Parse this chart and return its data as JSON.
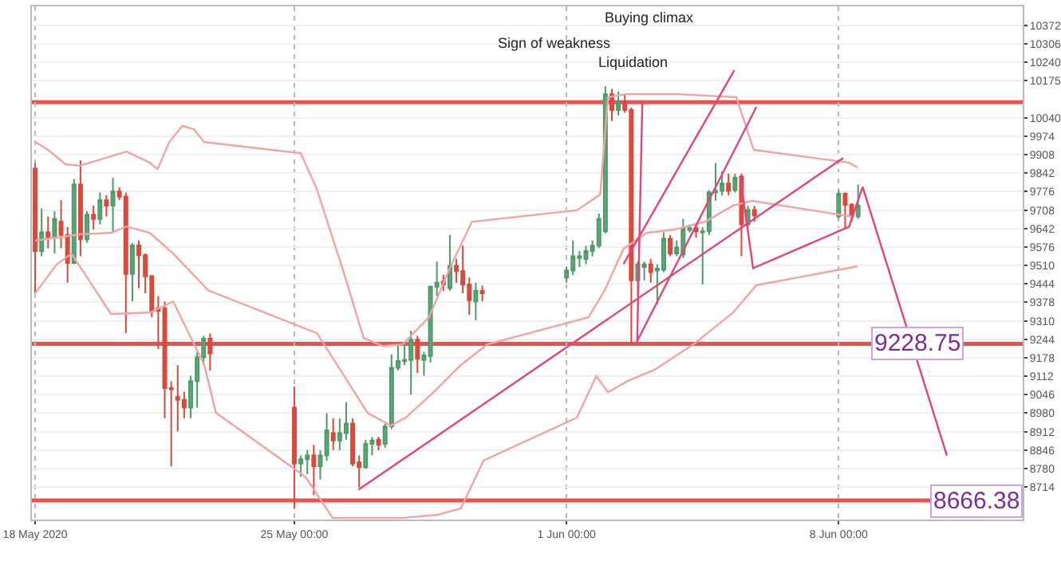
{
  "chart_data": {
    "type": "candlestick",
    "xlim": [
      "2020-05-18T06:00",
      "2020-06-12T17:36"
    ],
    "ylim": [
      8598,
      10440
    ],
    "xticks": [
      {
        "value": "2020-05-18T08:00",
        "label": "18 May 2020"
      },
      {
        "value": "2020-05-25T00:00",
        "label": "25 May 00:00"
      },
      {
        "value": "2020-06-01T00:00",
        "label": "1 Jun 00:00"
      },
      {
        "value": "2020-06-08T00:00",
        "label": "8 Jun 00:00"
      }
    ],
    "yticks": [
      10372,
      10306,
      10240,
      10175,
      10040,
      9974,
      9908,
      9842,
      9776,
      9708,
      9642,
      9576,
      9510,
      9444,
      9378,
      9310,
      9244,
      9178,
      9112,
      9046,
      8980,
      8912,
      8846,
      8780,
      8714
    ],
    "grid": true,
    "x": [
      "2020-05-18T08:00",
      "2020-05-18T12:00",
      "2020-05-18T16:00",
      "2020-05-18T20:00",
      "2020-05-19T00:00",
      "2020-05-19T04:00",
      "2020-05-19T08:00",
      "2020-05-19T12:00",
      "2020-05-19T16:00",
      "2020-05-19T20:00",
      "2020-05-20T00:00",
      "2020-05-20T04:00",
      "2020-05-20T08:00",
      "2020-05-20T12:00",
      "2020-05-20T16:00",
      "2020-05-20T20:00",
      "2020-05-21T00:00",
      "2020-05-21T04:00",
      "2020-05-21T08:00",
      "2020-05-21T12:00",
      "2020-05-21T16:00",
      "2020-05-21T20:00",
      "2020-05-22T00:00",
      "2020-05-22T04:00",
      "2020-05-22T08:00",
      "2020-05-22T12:00",
      "2020-05-22T16:00",
      "2020-05-22T20:00",
      "2020-05-25T00:00",
      "2020-05-25T04:00",
      "2020-05-25T08:00",
      "2020-05-25T12:00",
      "2020-05-25T16:00",
      "2020-05-25T20:00",
      "2020-05-26T00:00",
      "2020-05-26T04:00",
      "2020-05-26T08:00",
      "2020-05-26T12:00",
      "2020-05-26T16:00",
      "2020-05-26T20:00",
      "2020-05-27T00:00",
      "2020-05-27T04:00",
      "2020-05-27T08:00",
      "2020-05-27T12:00",
      "2020-05-27T16:00",
      "2020-05-27T20:00",
      "2020-05-28T00:00",
      "2020-05-28T04:00",
      "2020-05-28T08:00",
      "2020-05-28T12:00",
      "2020-05-28T16:00",
      "2020-05-28T20:00",
      "2020-05-29T00:00",
      "2020-05-29T04:00",
      "2020-05-29T08:00",
      "2020-05-29T12:00",
      "2020-05-29T16:00",
      "2020-05-29T20:00",
      "2020-06-01T00:00",
      "2020-06-01T04:00",
      "2020-06-01T08:00",
      "2020-06-01T12:00",
      "2020-06-01T16:00",
      "2020-06-01T20:00",
      "2020-06-02T00:00",
      "2020-06-02T04:00",
      "2020-06-02T08:00",
      "2020-06-02T12:00",
      "2020-06-02T16:00",
      "2020-06-02T20:00",
      "2020-06-03T00:00",
      "2020-06-03T04:00",
      "2020-06-03T08:00",
      "2020-06-03T12:00",
      "2020-06-03T16:00",
      "2020-06-03T20:00",
      "2020-06-04T00:00",
      "2020-06-04T04:00",
      "2020-06-04T08:00",
      "2020-06-04T12:00",
      "2020-06-04T16:00",
      "2020-06-04T20:00",
      "2020-06-05T00:00",
      "2020-06-05T04:00",
      "2020-06-05T08:00",
      "2020-06-05T12:00",
      "2020-06-05T16:00",
      "2020-06-05T20:00",
      "2020-06-08T00:00",
      "2020-06-08T04:00",
      "2020-06-08T08:00",
      "2020-06-08T12:00"
    ],
    "ohlc": [
      [
        9858,
        9877,
        9410,
        9562
      ],
      [
        9562,
        9715,
        9543,
        9629
      ],
      [
        9629,
        9686,
        9572,
        9610
      ],
      [
        9610,
        9705,
        9553,
        9677
      ],
      [
        9667,
        9744,
        9572,
        9620
      ],
      [
        9620,
        9648,
        9448,
        9519
      ],
      [
        9519,
        9820,
        9515,
        9801
      ],
      [
        9801,
        9887,
        9543,
        9604
      ],
      [
        9604,
        9705,
        9591,
        9692
      ],
      [
        9692,
        9725,
        9639,
        9677
      ],
      [
        9677,
        9772,
        9658,
        9744
      ],
      [
        9744,
        9763,
        9686,
        9725
      ],
      [
        9725,
        9824,
        9629,
        9776
      ],
      [
        9776,
        9791,
        9744,
        9757
      ],
      [
        9757,
        9772,
        9267,
        9480
      ],
      [
        9480,
        9591,
        9381,
        9582
      ],
      [
        9582,
        9600,
        9429,
        9547
      ],
      [
        9547,
        9553,
        9410,
        9471
      ],
      [
        9471,
        9477,
        9324,
        9347
      ],
      [
        9356,
        9400,
        9210,
        9347
      ],
      [
        9356,
        9381,
        8962,
        9070
      ],
      [
        9070,
        9095,
        8790,
        9066
      ],
      [
        9038,
        9152,
        8914,
        9028
      ],
      [
        9028,
        9057,
        8962,
        9000
      ],
      [
        9000,
        9114,
        8962,
        9095
      ],
      [
        9095,
        9200,
        9000,
        9181
      ],
      [
        9181,
        9257,
        9152,
        9247
      ],
      [
        9247,
        9266,
        9133,
        9194
      ],
      [
        9000,
        9076,
        8637,
        8799
      ],
      [
        8799,
        8828,
        8752,
        8815
      ],
      [
        8815,
        8847,
        8761,
        8828
      ],
      [
        8828,
        8866,
        8685,
        8790
      ],
      [
        8790,
        8847,
        8742,
        8828
      ],
      [
        8828,
        8980,
        8809,
        8918
      ],
      [
        8908,
        8961,
        8847,
        8882
      ],
      [
        8882,
        8961,
        8847,
        8908
      ],
      [
        8908,
        9019,
        8885,
        8943
      ],
      [
        8943,
        8961,
        8790,
        8799
      ],
      [
        8803,
        8828,
        8714,
        8786
      ],
      [
        8786,
        8885,
        8780,
        8870
      ],
      [
        8870,
        8895,
        8828,
        8882
      ],
      [
        8885,
        8895,
        8847,
        8866
      ],
      [
        8870,
        8943,
        8856,
        8933
      ],
      [
        8933,
        9190,
        8923,
        9143
      ],
      [
        9143,
        9228,
        9133,
        9167
      ],
      [
        9167,
        9228,
        9152,
        9171
      ],
      [
        9171,
        9276,
        9047,
        9244
      ],
      [
        9244,
        9257,
        9124,
        9175
      ],
      [
        9171,
        9200,
        9114,
        9187
      ],
      [
        9185,
        9438,
        9162,
        9434
      ],
      [
        9434,
        9524,
        9400,
        9448
      ],
      [
        9452,
        9476,
        9419,
        9442
      ],
      [
        9429,
        9620,
        9419,
        9509
      ],
      [
        9509,
        9534,
        9448,
        9490
      ],
      [
        9490,
        9581,
        9410,
        9442
      ],
      [
        9442,
        9467,
        9333,
        9385
      ],
      [
        9381,
        9448,
        9314,
        9419
      ],
      [
        9419,
        9438,
        9381,
        9410
      ],
      [
        9467,
        9505,
        9448,
        9492
      ],
      [
        9492,
        9600,
        9476,
        9543
      ],
      [
        9537,
        9562,
        9505,
        9543
      ],
      [
        9533,
        9581,
        9514,
        9562
      ],
      [
        9562,
        9600,
        9543,
        9581
      ],
      [
        9581,
        9696,
        9572,
        9677
      ],
      [
        9633,
        10153,
        9625,
        10125
      ],
      [
        10125,
        10144,
        10029,
        10068
      ],
      [
        10068,
        10134,
        10049,
        10096
      ],
      [
        10096,
        10125,
        10058,
        10068
      ],
      [
        10068,
        10077,
        9229,
        9457
      ],
      [
        9457,
        9524,
        9400,
        9514
      ],
      [
        9505,
        9524,
        9457,
        9514
      ],
      [
        9514,
        9534,
        9448,
        9486
      ],
      [
        9492,
        9514,
        9371,
        9499
      ],
      [
        9495,
        9629,
        9486,
        9606
      ],
      [
        9606,
        9619,
        9543,
        9553
      ],
      [
        9553,
        9600,
        9543,
        9575
      ],
      [
        9549,
        9677,
        9537,
        9642
      ],
      [
        9638,
        9657,
        9629,
        9644
      ],
      [
        9644,
        9657,
        9610,
        9633
      ],
      [
        9629,
        9648,
        9442,
        9633
      ],
      [
        9633,
        9781,
        9619,
        9772
      ],
      [
        9772,
        9877,
        9743,
        9778
      ],
      [
        9778,
        9848,
        9762,
        9804
      ],
      [
        9804,
        9839,
        9762,
        9778
      ],
      [
        9781,
        9839,
        9772,
        9825
      ],
      [
        9829,
        9839,
        9543,
        9658
      ],
      [
        9658,
        9724,
        9648,
        9709
      ],
      [
        9709,
        9724,
        9667,
        9690
      ],
      [
        9686,
        9781,
        9677,
        9768
      ],
      [
        9768,
        9772,
        9639,
        9728
      ],
      [
        9728,
        9734,
        9667,
        9686
      ],
      [
        9686,
        9801,
        9677,
        9725
      ]
    ],
    "series": [
      {
        "type": "line",
        "color": "#f4a3a3",
        "x": [
          "2020-05-18T08:00",
          "2020-05-18T16:00",
          "2020-05-19T02:48",
          "2020-05-19T11:36",
          "2020-05-20T16:24",
          "2020-05-21T06:48",
          "2020-05-21T11:36",
          "2020-05-21T18:48",
          "2020-05-22T02:48",
          "2020-05-22T10:00",
          "2020-05-22T16:24",
          "2020-05-25T04:00",
          "2020-05-25T14:00",
          "2020-05-26T06:48",
          "2020-05-26T18:48",
          "2020-05-27T06:24",
          "2020-05-27T18:48",
          "2020-05-28T11:12",
          "2020-05-28T23:36",
          "2020-05-29T13:36",
          "2020-06-01T06:24",
          "2020-06-01T20:48",
          "2020-06-02T01:36",
          "2020-06-02T12:24",
          "2020-06-03T20:48",
          "2020-06-05T08:48",
          "2020-06-05T19:36",
          "2020-06-08T06:24",
          "2020-06-08T11:36"
        ],
        "values": [
          9953,
          9925,
          9873,
          9868,
          9919,
          9879,
          9856,
          9953,
          10011,
          9999,
          9953,
          9913,
          9782,
          9479,
          9250,
          9221,
          9227,
          9324,
          9496,
          9667,
          9708,
          9765,
          10114,
          10125,
          10125,
          10114,
          9925,
          9879,
          9862
        ]
      },
      {
        "type": "line",
        "color": "#f4a3a3",
        "x": [
          "2020-05-18T08:00",
          "2020-05-19T11:36",
          "2020-05-20T06:48",
          "2020-05-20T16:24",
          "2020-05-21T06:48",
          "2020-05-21T21:12",
          "2020-05-22T18:48",
          "2020-05-25T14:00",
          "2020-05-26T06:48",
          "2020-05-26T21:12",
          "2020-05-27T11:36",
          "2020-05-27T20:48",
          "2020-05-28T14:00",
          "2020-05-29T06:48",
          "2020-05-29T23:12",
          "2020-06-01T13:36",
          "2020-06-01T23:36",
          "2020-06-02T11:12",
          "2020-06-03T01:36",
          "2020-06-03T18:48",
          "2020-06-04T13:36",
          "2020-06-05T06:48",
          "2020-06-05T18:24",
          "2020-06-08T08:48"
        ],
        "values": [
          9599,
          9622,
          9627,
          9650,
          9627,
          9553,
          9421,
          9267,
          9113,
          8981,
          8935,
          8964,
          9055,
          9153,
          9227,
          9324,
          9421,
          9570,
          9627,
          9639,
          9667,
          9725,
          9742,
          9685
        ]
      },
      {
        "type": "line",
        "color": "#f4a3a3",
        "x": [
          "2020-05-18T08:00",
          "2020-05-18T21:12",
          "2020-05-19T06:24",
          "2020-05-20T06:48",
          "2020-05-21T06:48",
          "2020-05-21T21:12",
          "2020-05-22T16:24",
          "2020-05-22T23:36",
          "2020-05-25T06:48",
          "2020-05-25T23:36",
          "2020-05-27T18:48",
          "2020-05-28T16:24",
          "2020-05-29T06:48",
          "2020-05-29T20:48",
          "2020-06-01T06:24",
          "2020-06-01T18:24",
          "2020-06-02T01:36",
          "2020-06-02T14:00",
          "2020-06-03T06:24",
          "2020-06-04T06:24",
          "2020-06-05T06:48",
          "2020-06-05T21:12",
          "2020-06-08T11:36"
        ],
        "values": [
          9410,
          9513,
          9553,
          9336,
          9341,
          9381,
          9153,
          8981,
          8752,
          8604,
          8604,
          8615,
          8638,
          8810,
          8964,
          9113,
          9055,
          9096,
          9136,
          9227,
          9341,
          9439,
          9507
        ]
      },
      {
        "type": "line",
        "color": "#e0457b",
        "x": [
          "2020-05-26T15:36",
          "2020-06-08T02:48"
        ],
        "values": [
          8705,
          9896
        ]
      },
      {
        "type": "line",
        "color": "#e0457b",
        "x": [
          "2020-06-02T11:12",
          "2020-06-05T07:36"
        ],
        "values": [
          9515,
          10211
        ]
      },
      {
        "type": "line",
        "color": "#e0457b",
        "x": [
          "2020-06-02T19:36",
          "2020-06-05T21:12"
        ],
        "values": [
          9238,
          10079
        ]
      },
      {
        "type": "line",
        "color": "#e0457b",
        "x": [
          "2020-06-02T19:36",
          "2020-06-02T22:48"
        ],
        "values": [
          9232,
          10096
        ]
      },
      {
        "type": "line",
        "color": "#e0457b",
        "x": [
          "2020-06-05T11:12",
          "2020-06-05T19:12",
          "2020-06-08T06:24",
          "2020-06-08T14:48",
          "2020-06-10T18:48"
        ],
        "values": [
          9829,
          9500,
          9649,
          9792,
          8828
        ]
      }
    ],
    "ref_lines": [
      {
        "axis": "y",
        "value": 10096,
        "color": "#e8524f"
      },
      {
        "axis": "y",
        "value": 9228.75,
        "label": "9228.75",
        "color": "#e8524f"
      },
      {
        "axis": "y",
        "value": 8666.38,
        "label": "8666.38",
        "color": "#e8524f"
      }
    ],
    "annotations": [
      "Buying climax",
      "Sign of weakness",
      "Liquidation"
    ]
  }
}
